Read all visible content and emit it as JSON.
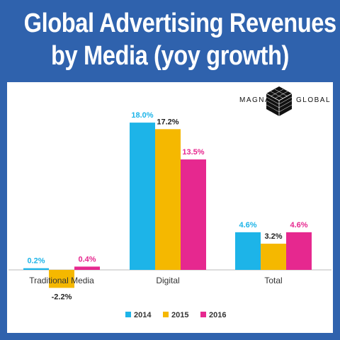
{
  "header": {
    "title_line1": "Global Advertising Revenues",
    "title_line2": "by Media (yoy growth)"
  },
  "logo": {
    "left": "MAGNA",
    "right": "GLOBAL"
  },
  "colors": {
    "background": "#2f62ad",
    "panel": "#ffffff",
    "series_2014": "#1db4e8",
    "series_2015": "#f5b800",
    "series_2016": "#e6288f"
  },
  "chart_data": {
    "type": "bar",
    "categories": [
      "Traditional Media",
      "Digital",
      "Total"
    ],
    "series": [
      {
        "name": "2014",
        "values": [
          0.2,
          18.0,
          4.6
        ],
        "labels": [
          "0.2%",
          "18.0%",
          "4.6%"
        ],
        "color": "#1db4e8"
      },
      {
        "name": "2015",
        "values": [
          -2.2,
          17.2,
          3.2
        ],
        "labels": [
          "-2.2%",
          "17.2%",
          "3.2%"
        ],
        "color": "#f5b800"
      },
      {
        "name": "2016",
        "values": [
          0.4,
          13.5,
          4.6
        ],
        "labels": [
          "0.4%",
          "13.5%",
          "4.6%"
        ],
        "color": "#e6288f"
      }
    ],
    "label_colors": [
      "#1db4e8",
      "#222222",
      "#e6288f"
    ],
    "title": "Global Advertising Revenues by Media (yoy growth)",
    "xlabel": "",
    "ylabel": "",
    "ylim": [
      -3,
      19
    ],
    "grid": false,
    "legend": "bottom"
  }
}
